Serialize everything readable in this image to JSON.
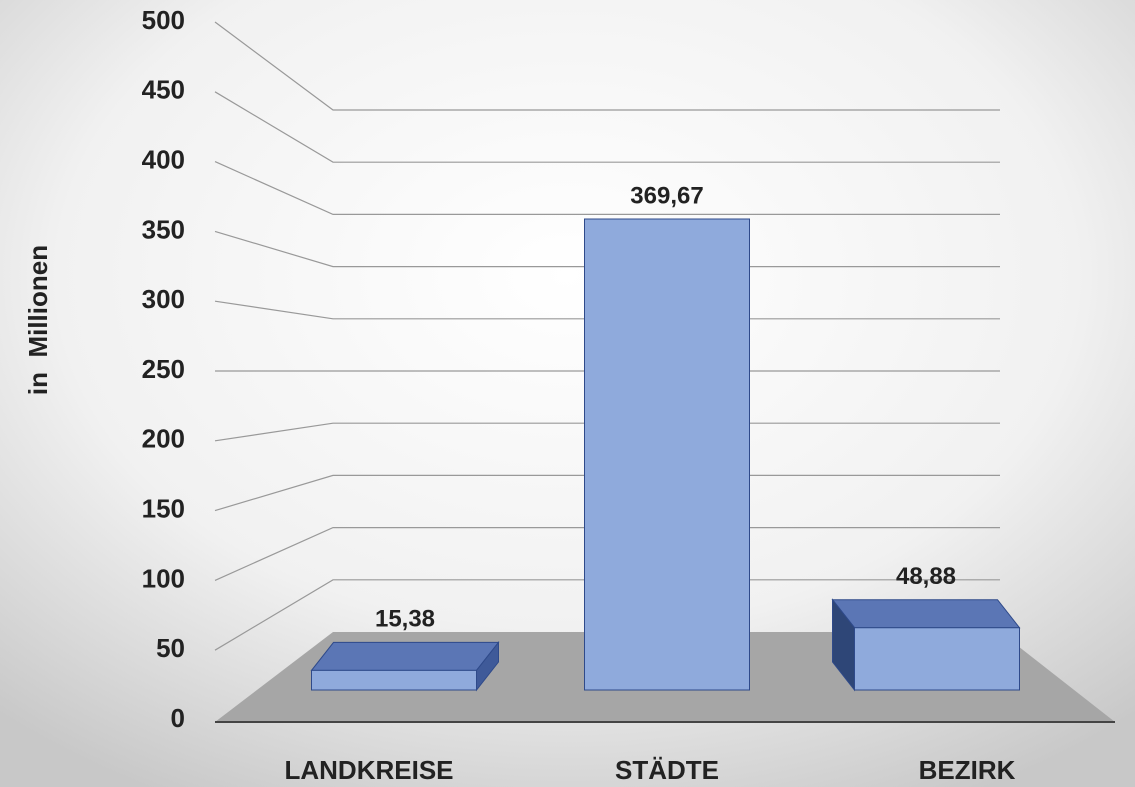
{
  "chart_data": {
    "type": "bar3d",
    "y_label": "in  Millionen",
    "categories": [
      "LANDKREISE",
      "STÄDTE",
      "BEZIRK"
    ],
    "values": [
      15.38,
      369.67,
      48.88
    ],
    "value_labels": [
      "15,38",
      "369,67",
      "48,88"
    ],
    "color": "#8faadc",
    "ylim": [
      0,
      500
    ],
    "yticks": [
      0,
      50,
      100,
      150,
      200,
      250,
      300,
      350,
      400,
      450,
      500
    ],
    "grid": true
  }
}
